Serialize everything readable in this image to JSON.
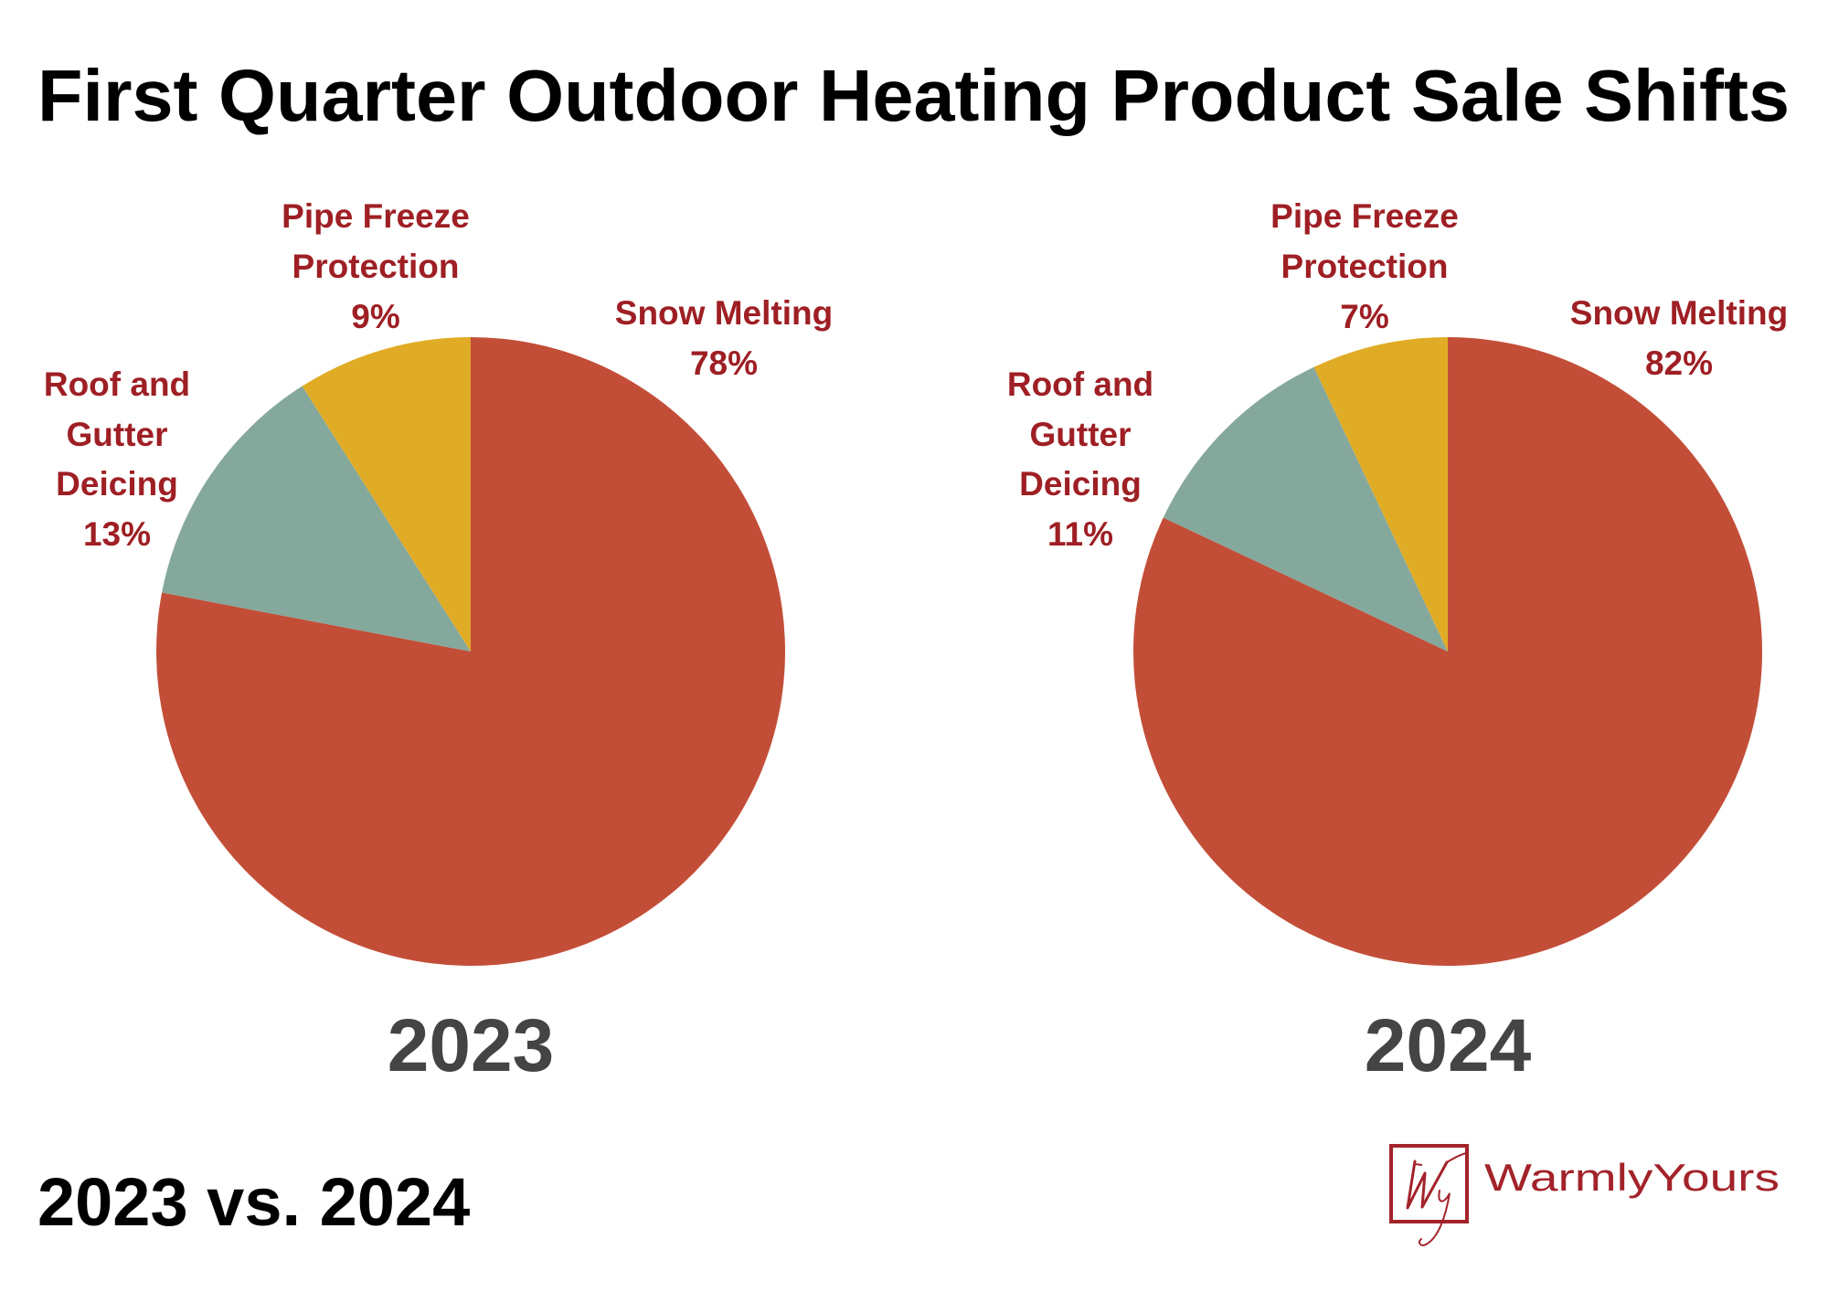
{
  "title": "First Quarter Outdoor Heating Product Sale Shifts",
  "subtitle": "2023 vs. 2024",
  "brand": {
    "name": "WarmlyYours",
    "monogram": "Wy",
    "color": "#a3232a"
  },
  "label_color": "#9e1f24",
  "chart_data": [
    {
      "type": "pie",
      "title": "2023",
      "start": "12 o'clock",
      "direction": "clockwise",
      "slices": [
        {
          "name": "Snow Melting",
          "value": 78,
          "label_lines": [
            "Snow Melting",
            "78%"
          ],
          "color": "#c34e38"
        },
        {
          "name": "Roof and Gutter Deicing",
          "value": 13,
          "label_lines": [
            "Roof and",
            "Gutter",
            "Deicing",
            "13%"
          ],
          "color": "#85a89c"
        },
        {
          "name": "Pipe Freeze Protection",
          "value": 9,
          "label_lines": [
            "Pipe Freeze",
            "Protection",
            "9%"
          ],
          "color": "#e1ac25"
        }
      ],
      "unit": "%"
    },
    {
      "type": "pie",
      "title": "2024",
      "start": "12 o'clock",
      "direction": "clockwise",
      "slices": [
        {
          "name": "Snow Melting",
          "value": 82,
          "label_lines": [
            "Snow Melting",
            "82%"
          ],
          "color": "#c34e38"
        },
        {
          "name": "Roof and Gutter Deicing",
          "value": 11,
          "label_lines": [
            "Roof and",
            "Gutter",
            "Deicing",
            "11%"
          ],
          "color": "#85a89c"
        },
        {
          "name": "Pipe Freeze Protection",
          "value": 7,
          "label_lines": [
            "Pipe Freeze",
            "Protection",
            "7%"
          ],
          "color": "#e1ac25"
        }
      ],
      "unit": "%"
    }
  ]
}
